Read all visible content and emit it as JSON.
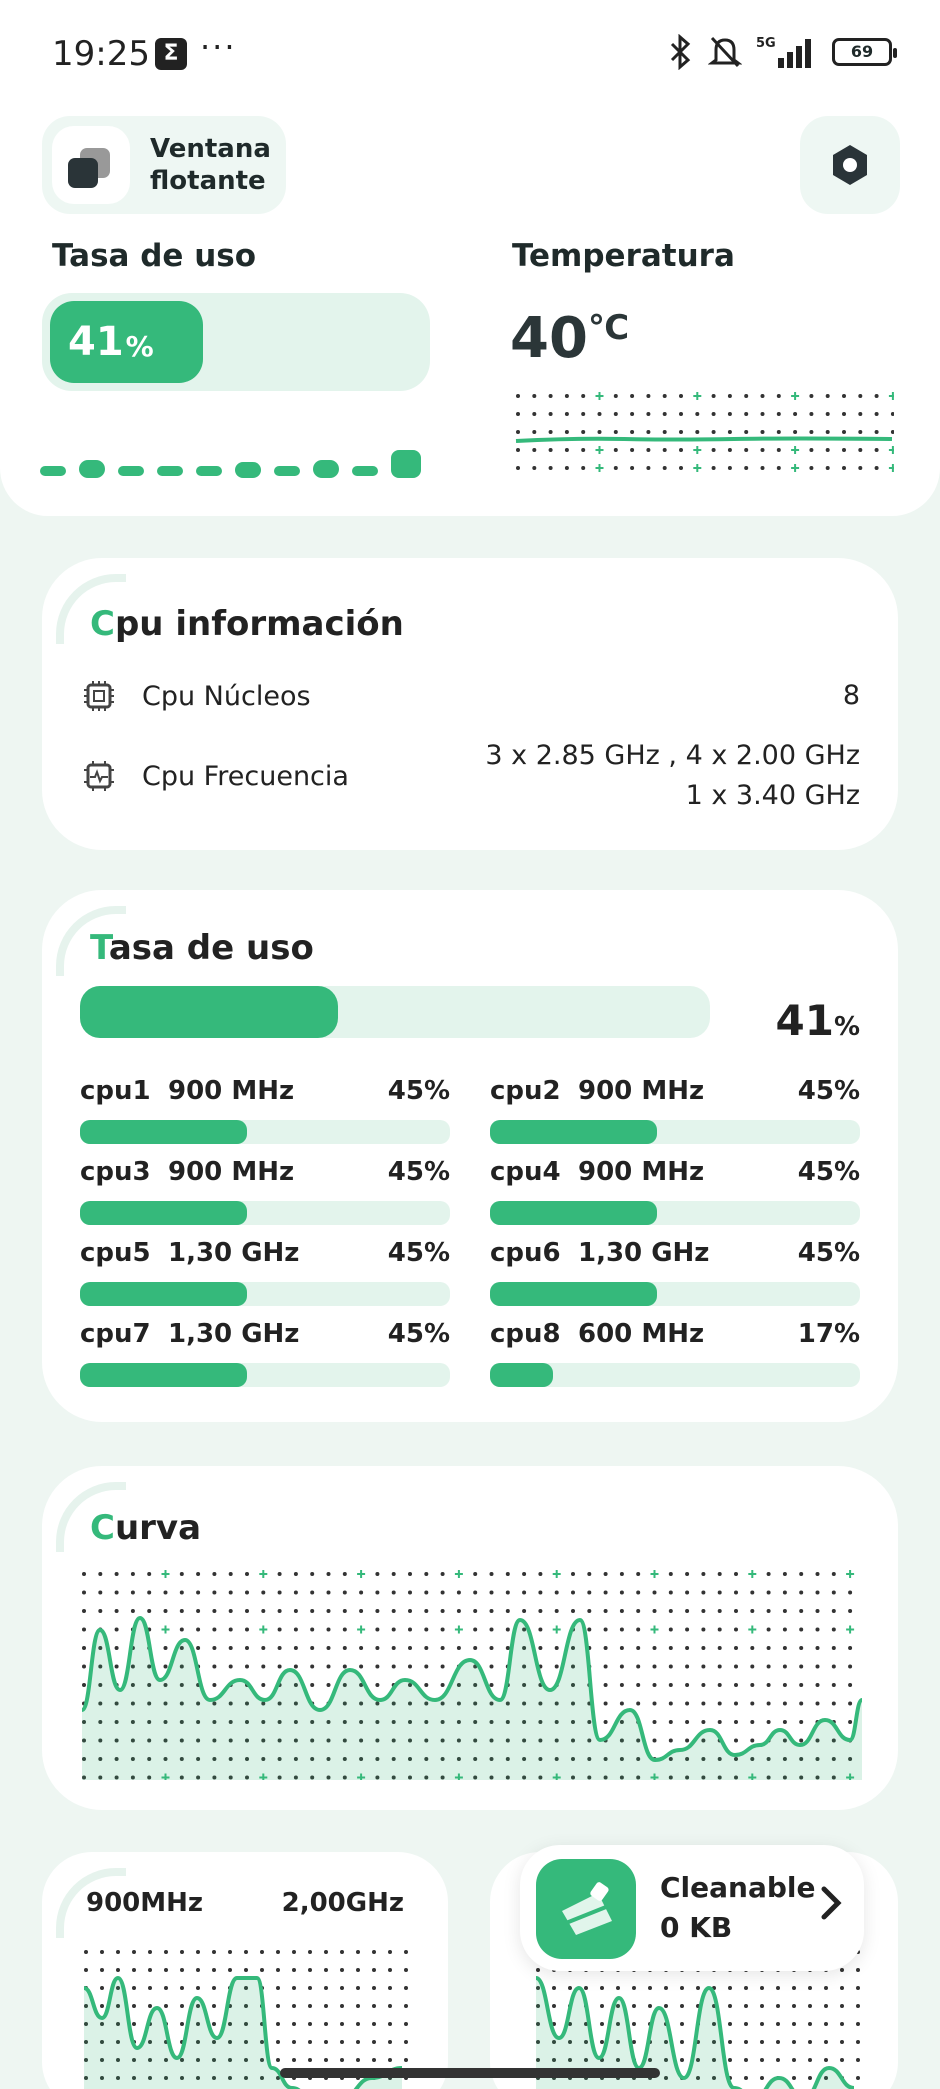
{
  "status": {
    "time": "19:25",
    "app_glyph": "Σ",
    "dots": "···",
    "network": "5G",
    "battery": "69"
  },
  "floating": {
    "label": "Ventana flotante"
  },
  "top": {
    "usage_label": "Tasa de uso",
    "usage_value": "41",
    "usage_unit": "%",
    "usage_fraction": 0.41,
    "temp_label": "Temperatura",
    "temp_value": "40",
    "temp_unit": "℃"
  },
  "cpu_info": {
    "title_first": "C",
    "title_rest": "pu información",
    "cores_label": "Cpu Núcleos",
    "cores_value": "8",
    "freq_label": "Cpu Frecuencia",
    "freq_line1": "3 x 2.85 GHz , 4 x 2.00 GHz",
    "freq_line2": "1 x 3.40 GHz"
  },
  "usage": {
    "title_first": "T",
    "title_rest": "asa de uso",
    "total_value": "41",
    "total_unit": "%",
    "total_fraction": 0.41,
    "cores": [
      {
        "name": "cpu1",
        "freq": "900 MHz",
        "pct": "45%",
        "fraction": 0.45
      },
      {
        "name": "cpu2",
        "freq": "900 MHz",
        "pct": "45%",
        "fraction": 0.45
      },
      {
        "name": "cpu3",
        "freq": "900 MHz",
        "pct": "45%",
        "fraction": 0.45
      },
      {
        "name": "cpu4",
        "freq": "900 MHz",
        "pct": "45%",
        "fraction": 0.45
      },
      {
        "name": "cpu5",
        "freq": "1,30 GHz",
        "pct": "45%",
        "fraction": 0.45
      },
      {
        "name": "cpu6",
        "freq": "1,30 GHz",
        "pct": "45%",
        "fraction": 0.45
      },
      {
        "name": "cpu7",
        "freq": "1,30 GHz",
        "pct": "45%",
        "fraction": 0.45
      },
      {
        "name": "cpu8",
        "freq": "600 MHz",
        "pct": "17%",
        "fraction": 0.17
      }
    ]
  },
  "curve": {
    "title_first": "C",
    "title_rest": "urva"
  },
  "freq_card": {
    "min": "900MHz",
    "max": "2,00GHz"
  },
  "cleanable": {
    "title": "Cleanable",
    "size": "0 KB"
  },
  "colors": {
    "accent": "#35b97b",
    "track": "#e3f4ec",
    "background": "#eef6f2"
  }
}
